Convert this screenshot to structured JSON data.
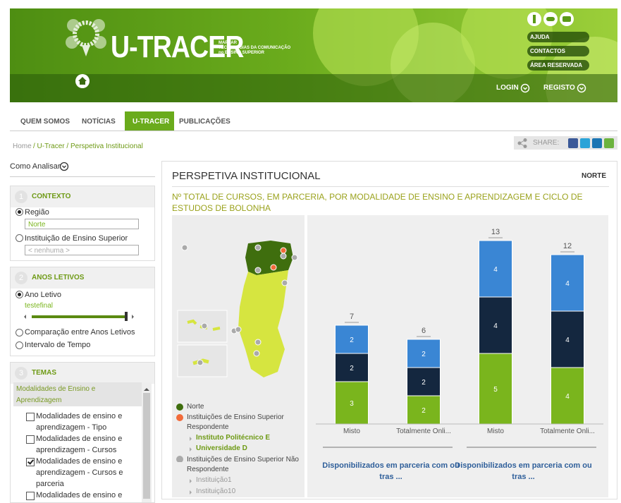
{
  "header": {
    "logo": "U-TRACER",
    "tagline": [
      "MAPEAR",
      "TECNOLOGIAS DA COMUNICAÇÃO",
      "no ENSINO SUPERIOR"
    ],
    "links": [
      "AJUDA",
      "CONTACTOS",
      "ÁREA RESERVADA"
    ],
    "login": "LOGIN",
    "register": "REGISTO"
  },
  "nav": [
    "QUEM SOMOS",
    "NOTÍCIAS",
    "U-TRACER",
    "PUBLICAÇÕES"
  ],
  "breadcrumb": [
    "Home",
    "/ U-Tracer / Perspetiva Institucional"
  ],
  "share": "SHARE:",
  "sidebar": {
    "how_to": "Como Analisar",
    "context": {
      "number": 1,
      "title": "CONTEXTO",
      "region": "Região",
      "region_value": "Norte",
      "institution": "Instituição de Ensino Superior",
      "institution_value": "< nenhuma >"
    },
    "years": {
      "number": 2,
      "title": "ANOS LETIVOS",
      "year": "Ano Letivo",
      "year_value": "testefinal",
      "compare": "Comparação entre Anos Letivos",
      "interval": "Intervalo de Tempo"
    },
    "themes": {
      "number": 3,
      "title": "TEMAS",
      "group": "Modalidades de Ensino e Aprendizagem",
      "options": [
        "Modalidades de ensino e aprendizagem - Tipo",
        "Modalidades de ensino e aprendizagem - Cursos",
        "Modalidades de ensino e aprendizagem - Cursos e parceria",
        "Modalidades de ensino e"
      ],
      "checked": [
        false,
        false,
        true,
        false
      ]
    }
  },
  "panel": {
    "title": "PERSPETIVA INSTITUCIONAL",
    "region": "NORTE"
  },
  "map_legend": {
    "region": "Norte",
    "respondent": "Instituições de Ensino Superior Respondente",
    "respondent_items": [
      "Instituto Politécnico E",
      "Universidade D"
    ],
    "non_respondent": "Instituições de Ensino Superior Não Respondente",
    "non_respondent_items": [
      "Instituição1",
      "Instituição10"
    ]
  },
  "chart_data": {
    "type": "stacked_bar",
    "title": "Nº TOTAL DE CURSOS, EM PARCERIA, POR MODALIDADE DE ENSINO E APRENDIZAGEM E CICLO DE ESTUDOS DE BOLONHA",
    "categories": [
      "Misto",
      "Totalmente Onli...",
      "Misto",
      "Totalmente Onli..."
    ],
    "series": [
      {
        "color": "#7ab51d",
        "values": [
          3,
          2,
          5,
          4
        ]
      },
      {
        "color": "#14273f",
        "values": [
          2,
          2,
          4,
          4
        ]
      },
      {
        "color": "#3a86d4",
        "values": [
          2,
          2,
          4,
          4
        ]
      }
    ],
    "totals": [
      7,
      6,
      13,
      12
    ],
    "groups": [
      "Disponibilizados em parceria com ou tras ...",
      "Disponibilizados em parceria com ou tras ..."
    ]
  }
}
